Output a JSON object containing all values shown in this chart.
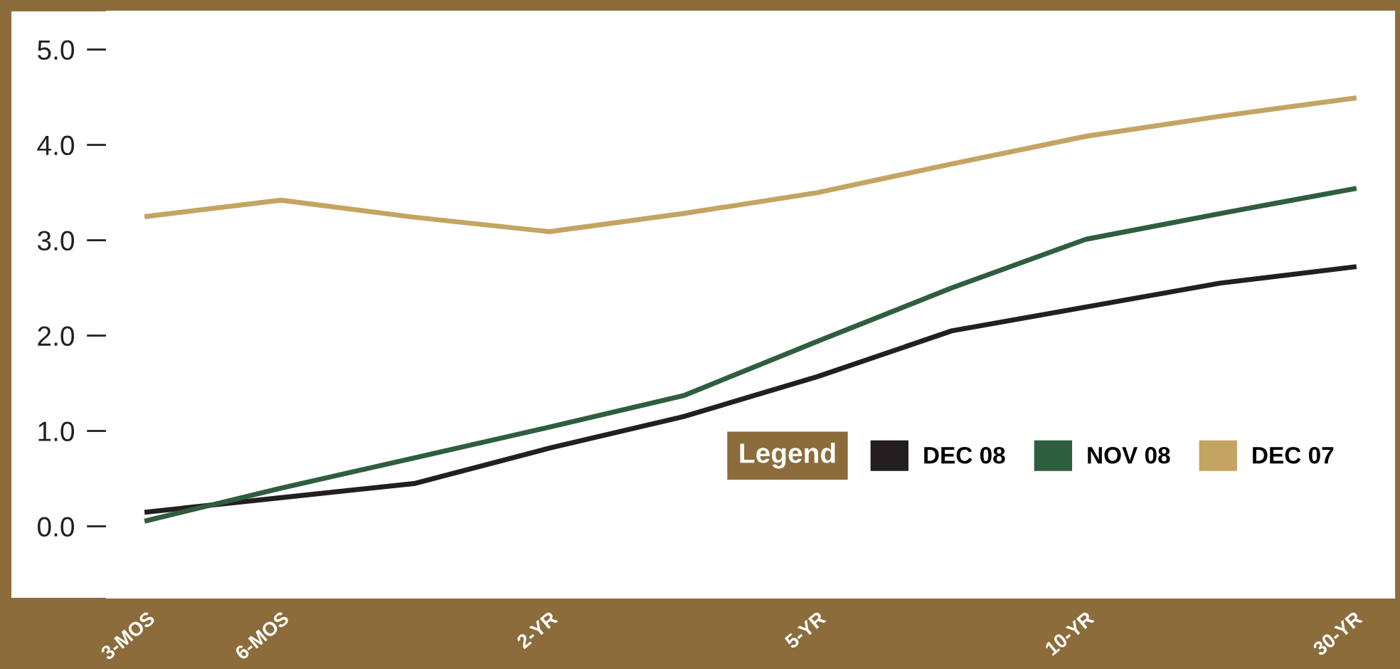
{
  "chart_data": {
    "type": "line",
    "legend_title": "Legend",
    "legend": "bottom right",
    "grid": false,
    "marker": "none",
    "line_style": "solid",
    "categories": [
      "3-MOS",
      "6-MOS",
      null,
      "2-YR",
      null,
      "5-YR",
      null,
      "10-YR",
      null,
      "30-YR"
    ],
    "ylim": [
      -0.75,
      5.4
    ],
    "yticks": [
      {
        "value": 0,
        "label": "0.0"
      },
      {
        "value": 1,
        "label": "1.0"
      },
      {
        "value": 2,
        "label": "2.0"
      },
      {
        "value": 3,
        "label": "3.0"
      },
      {
        "value": 4,
        "label": "4.0"
      },
      {
        "value": 5,
        "label": "5.0"
      }
    ],
    "series": [
      {
        "name": "DEC 08",
        "color": "#231f20",
        "values": [
          0.15,
          0.3,
          0.45,
          0.82,
          1.15,
          1.57,
          2.05,
          2.3,
          2.55,
          2.72
        ]
      },
      {
        "name": "NOV 08",
        "color": "#2e5e3e",
        "values": [
          0.06,
          0.4,
          0.72,
          1.04,
          1.37,
          1.94,
          2.5,
          3.01,
          3.28,
          3.54
        ]
      },
      {
        "name": "DEC 07",
        "color": "#c4a463",
        "values": [
          3.25,
          3.42,
          3.24,
          3.09,
          3.28,
          3.5,
          3.8,
          4.09,
          4.3,
          4.49
        ]
      }
    ]
  }
}
